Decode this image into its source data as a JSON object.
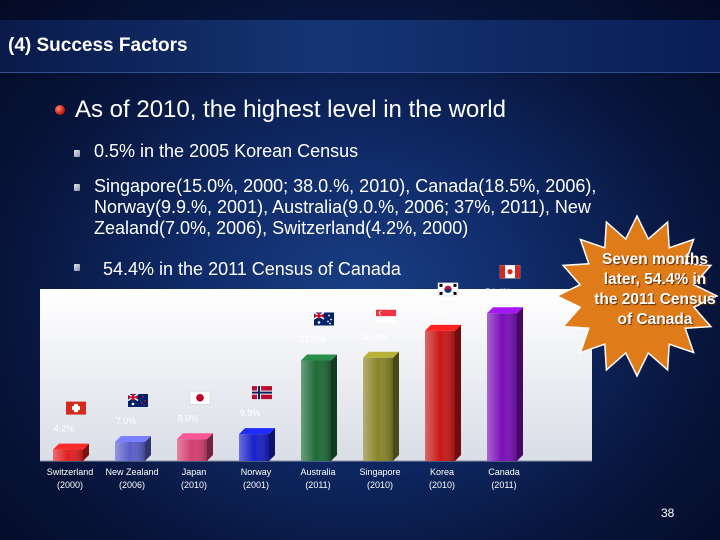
{
  "title": "(4) Success Factors",
  "bullets": {
    "main": "As of 2010, the highest level in the world",
    "sub1": "0.5% in the 2005 Korean Census",
    "sub2": "Singapore(15.0%, 2000; 38.0.%, 2010), Canada(18.5%, 2006), Norway(9.9.%, 2001), Australia(9.0.%, 2006; 37%, 2011), New Zealand(7.0%, 2006), Switzerland(4.2%, 2000)",
    "sub3": "54.4% in the 2011 Census of Canada"
  },
  "callout": "Seven months later, 54.4% in the 2011 Census of Canada",
  "page_number": "38",
  "colors": {
    "title_text": "#ffffff",
    "bullet_main": "#d1281c",
    "callout_fill": "#e07b1a"
  },
  "chart_data": {
    "type": "bar",
    "categories": [
      "Switzerland\n(2000)",
      "New Zealand\n(2006)",
      "Japan\n(2010)",
      "Norway\n(2001)",
      "Australia\n(2011)",
      "Singapore\n(2010)",
      "Korea\n(2010)",
      "Canada\n(2011)"
    ],
    "country_names": [
      "Switzerland",
      "New Zealand",
      "Japan",
      "Norway",
      "Australia",
      "Singapore",
      "Korea",
      "Canada"
    ],
    "years": [
      "(2000)",
      "(2006)",
      "(2010)",
      "(2001)",
      "(2011)",
      "(2010)",
      "(2010)",
      "(2011)"
    ],
    "values": [
      4.2,
      7.0,
      8.0,
      9.9,
      37.0,
      38.0,
      47.9,
      54.4
    ],
    "value_labels": [
      "4.2%",
      "7.0%",
      "8.0%",
      "9.9%",
      "37.0%",
      "38.0%",
      "47.9%",
      "54.4%"
    ],
    "flags": [
      "swiss-flag",
      "new-zealand-flag",
      "japan-flag",
      "norway-flag",
      "australia-flag",
      "singapore-flag",
      "korea-flag",
      "canada-flag"
    ],
    "bar_colors": [
      "#e02020",
      "#5a5fc8",
      "#d24070",
      "#1820c8",
      "#1f6a38",
      "#88842a",
      "#c81818",
      "#7a10b8"
    ],
    "ylim": [
      0,
      60
    ],
    "grid": false,
    "legend": "none"
  }
}
